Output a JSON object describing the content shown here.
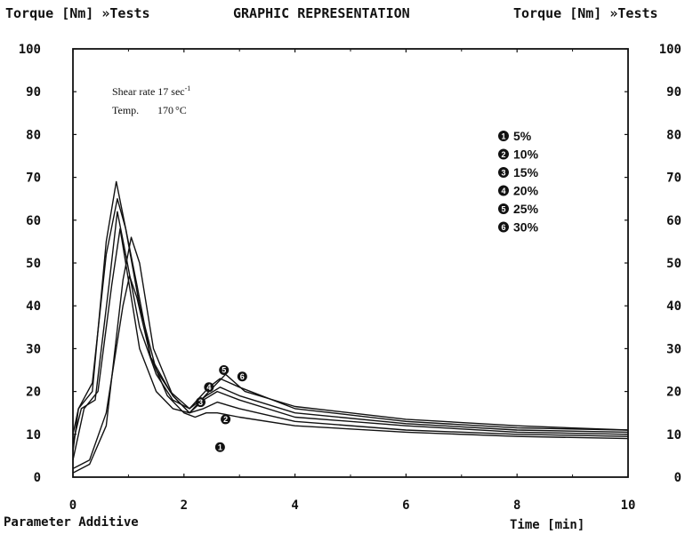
{
  "header": {
    "left_axis_title": "Torque [Nm] »Tests",
    "center_title": "GRAPHIC REPRESENTATION",
    "right_axis_title": "Torque [Nm] »Tests"
  },
  "footer": {
    "left_label": "Parameter Additive",
    "right_label": "Time [min]"
  },
  "annotation": {
    "shear_label": "Shear rate 17 sec",
    "shear_sup": "-1",
    "temp_label": "Temp.",
    "temp_value": "170",
    "temp_unit": "°C"
  },
  "chart_data": {
    "type": "line",
    "title": "GRAPHIC REPRESENTATION",
    "xlabel": "Time [min]",
    "ylabel": "Torque [Nm] »Tests",
    "xlim": [
      0,
      10
    ],
    "ylim": [
      0,
      100
    ],
    "x_ticks": [
      0,
      2,
      4,
      6,
      8,
      10
    ],
    "y_ticks": [
      0,
      10,
      20,
      30,
      40,
      50,
      60,
      70,
      80,
      90,
      100
    ],
    "y_tick_labels": [
      "0",
      "10",
      "20",
      "30",
      "40",
      "50",
      "60",
      "70",
      "80",
      "90",
      "100"
    ],
    "series": [
      {
        "name": "5%",
        "marker": "1",
        "points": [
          [
            0,
            2
          ],
          [
            0.3,
            4
          ],
          [
            0.6,
            15
          ],
          [
            0.9,
            40
          ],
          [
            1.02,
            47
          ],
          [
            1.15,
            42
          ],
          [
            1.4,
            28
          ],
          [
            1.7,
            19
          ],
          [
            2.0,
            15
          ],
          [
            2.2,
            14
          ],
          [
            2.4,
            15
          ],
          [
            2.6,
            15
          ],
          [
            3,
            14
          ],
          [
            4,
            12
          ],
          [
            6,
            10.5
          ],
          [
            8,
            9.5
          ],
          [
            10,
            9
          ]
        ]
      },
      {
        "name": "10%",
        "marker": "2",
        "points": [
          [
            0,
            1
          ],
          [
            0.3,
            3
          ],
          [
            0.6,
            12
          ],
          [
            0.9,
            46
          ],
          [
            1.05,
            56
          ],
          [
            1.2,
            50
          ],
          [
            1.45,
            30
          ],
          [
            1.8,
            19
          ],
          [
            2.1,
            15
          ],
          [
            2.35,
            16
          ],
          [
            2.6,
            17.5
          ],
          [
            3,
            16
          ],
          [
            4,
            13
          ],
          [
            6,
            11
          ],
          [
            8,
            10
          ],
          [
            10,
            9.5
          ]
        ]
      },
      {
        "name": "15%",
        "marker": "3",
        "points": [
          [
            0,
            4
          ],
          [
            0.2,
            16
          ],
          [
            0.45,
            20
          ],
          [
            0.7,
            45
          ],
          [
            0.85,
            58
          ],
          [
            0.95,
            50
          ],
          [
            1.2,
            30
          ],
          [
            1.5,
            20
          ],
          [
            1.8,
            16
          ],
          [
            2.1,
            15
          ],
          [
            2.35,
            18
          ],
          [
            2.6,
            20
          ],
          [
            3,
            18
          ],
          [
            4,
            14
          ],
          [
            6,
            12
          ],
          [
            8,
            10.5
          ],
          [
            10,
            10
          ]
        ]
      },
      {
        "name": "20%",
        "marker": "4",
        "points": [
          [
            0,
            8
          ],
          [
            0.15,
            16
          ],
          [
            0.4,
            18
          ],
          [
            0.65,
            45
          ],
          [
            0.8,
            62
          ],
          [
            0.95,
            52
          ],
          [
            1.2,
            35
          ],
          [
            1.5,
            24
          ],
          [
            1.8,
            18
          ],
          [
            2.1,
            16
          ],
          [
            2.4,
            19
          ],
          [
            2.65,
            21
          ],
          [
            3,
            19
          ],
          [
            4,
            15
          ],
          [
            6,
            12.5
          ],
          [
            8,
            11
          ],
          [
            10,
            10.5
          ]
        ]
      },
      {
        "name": "25%",
        "marker": "5",
        "points": [
          [
            0,
            10
          ],
          [
            0.1,
            16
          ],
          [
            0.35,
            20
          ],
          [
            0.6,
            55
          ],
          [
            0.78,
            69
          ],
          [
            0.92,
            60
          ],
          [
            1.15,
            45
          ],
          [
            1.4,
            28
          ],
          [
            1.75,
            20
          ],
          [
            2.1,
            16
          ],
          [
            2.45,
            21
          ],
          [
            2.65,
            23
          ],
          [
            3,
            21
          ],
          [
            4,
            16
          ],
          [
            6,
            13
          ],
          [
            8,
            11.5
          ],
          [
            10,
            11
          ]
        ]
      },
      {
        "name": "30%",
        "marker": "6",
        "points": [
          [
            0,
            6
          ],
          [
            0.1,
            16
          ],
          [
            0.35,
            22
          ],
          [
            0.6,
            52
          ],
          [
            0.8,
            65
          ],
          [
            0.95,
            58
          ],
          [
            1.2,
            40
          ],
          [
            1.5,
            25
          ],
          [
            1.8,
            19
          ],
          [
            2.1,
            15
          ],
          [
            2.45,
            20
          ],
          [
            2.75,
            24
          ],
          [
            3.1,
            20
          ],
          [
            4,
            16.5
          ],
          [
            6,
            13.5
          ],
          [
            8,
            12
          ],
          [
            10,
            11
          ]
        ]
      }
    ],
    "peak_markers": [
      {
        "marker": "1",
        "at": [
          2.65,
          7
        ]
      },
      {
        "marker": "2",
        "at": [
          2.75,
          13.5
        ]
      },
      {
        "marker": "3",
        "at": [
          2.3,
          17.5
        ]
      },
      {
        "marker": "4",
        "at": [
          2.45,
          21
        ]
      },
      {
        "marker": "5",
        "at": [
          2.72,
          25
        ]
      },
      {
        "marker": "6",
        "at": [
          3.05,
          23.5
        ]
      }
    ],
    "grid": false,
    "legend_position": "top-right"
  }
}
